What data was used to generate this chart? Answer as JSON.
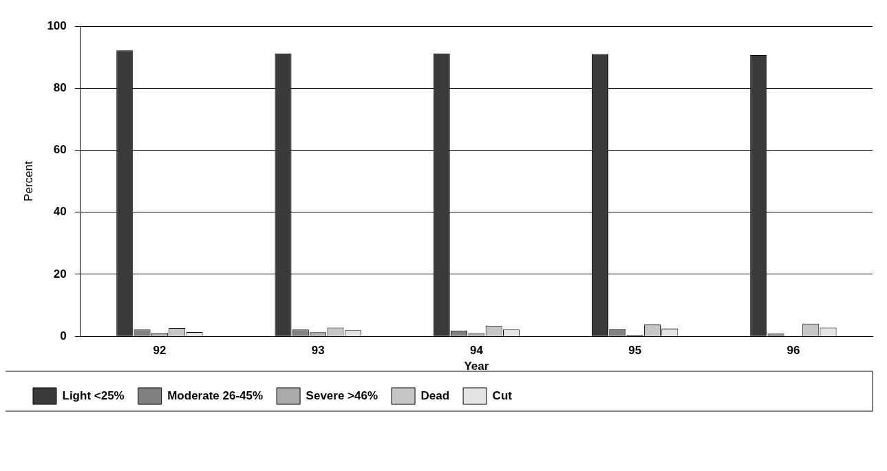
{
  "chart_data": {
    "type": "bar",
    "xlabel": "Year",
    "ylabel": "Percent",
    "categories": [
      "92",
      "93",
      "94",
      "95",
      "96"
    ],
    "series": [
      {
        "name": "Light <25%",
        "color": "#3a3a3a",
        "values": [
          92.2,
          91.2,
          91.2,
          91,
          90.7
        ]
      },
      {
        "name": "Moderate 26-45%",
        "color": "#808080",
        "values": [
          2.2,
          2.2,
          1.9,
          2.3,
          0.9
        ]
      },
      {
        "name": "Severe >46%",
        "color": "#aaaaaa",
        "values": [
          1.1,
          1.3,
          1,
          0.5,
          0
        ]
      },
      {
        "name": "Dead",
        "color": "#c6c6c6",
        "values": [
          2.7,
          2.8,
          3.4,
          3.8,
          4.1
        ]
      },
      {
        "name": "Cut",
        "color": "#e4e4e4",
        "values": [
          1.4,
          2,
          2.2,
          2.5,
          2.8
        ]
      }
    ],
    "ylim": [
      0,
      100
    ],
    "yticks": [
      0,
      20,
      40,
      60,
      80,
      100
    ],
    "grid": "y",
    "legend": "bottom"
  }
}
